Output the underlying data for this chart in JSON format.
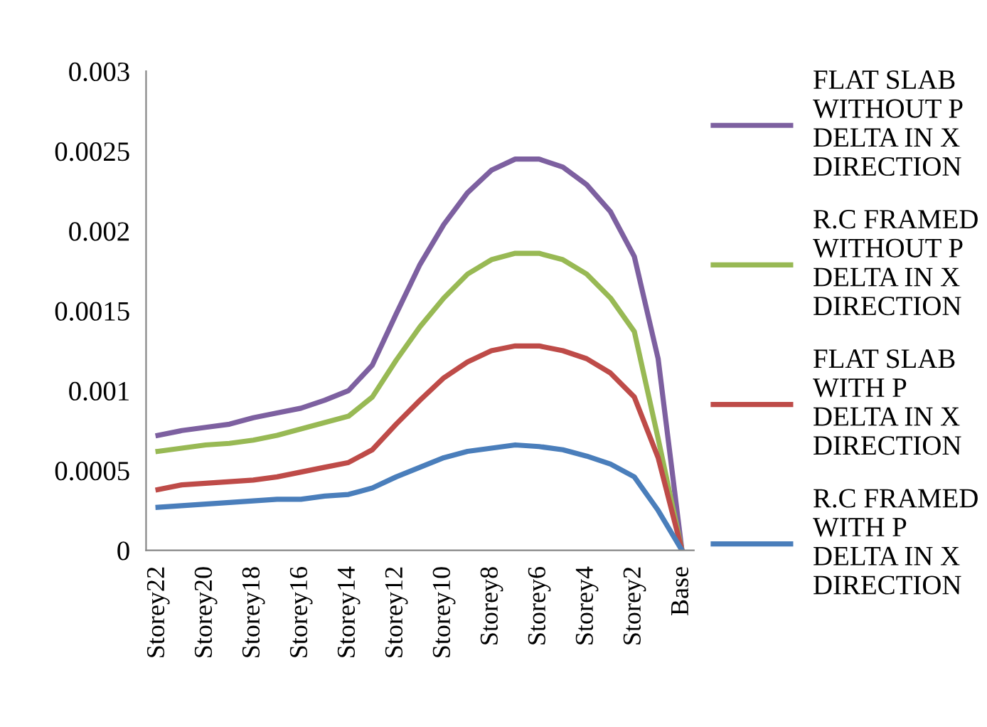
{
  "chart_data": {
    "type": "line",
    "categories": [
      "Storey22",
      null,
      "Storey20",
      null,
      "Storey18",
      null,
      "Storey16",
      null,
      "Storey14",
      null,
      "Storey12",
      null,
      "Storey10",
      null,
      "Storey8",
      null,
      "Storey6",
      null,
      "Storey4",
      null,
      "Storey2",
      null,
      "Base"
    ],
    "series": [
      {
        "name": "FLAT SLAB WITHOUT P DELTA IN X DIRECTION",
        "color": "#7d60a0",
        "values": [
          0.00072,
          0.00075,
          0.00077,
          0.00079,
          0.00083,
          0.00086,
          0.00089,
          0.00094,
          0.001,
          0.00116,
          0.00148,
          0.00179,
          0.00204,
          0.00224,
          0.00238,
          0.00245,
          0.00245,
          0.0024,
          0.00229,
          0.00212,
          0.00184,
          0.0012,
          0
        ]
      },
      {
        "name": "R.C FRAMED WITHOUT P DELTA IN X DIRECTION",
        "color": "#98b954",
        "values": [
          0.00062,
          0.00064,
          0.00066,
          0.00067,
          0.00069,
          0.00072,
          0.00076,
          0.0008,
          0.00084,
          0.00096,
          0.00119,
          0.0014,
          0.00158,
          0.00173,
          0.00182,
          0.00186,
          0.00186,
          0.00182,
          0.00173,
          0.00158,
          0.00137,
          0.0007,
          0
        ]
      },
      {
        "name": "FLAT SLAB WITH P DELTA IN X DIRECTION",
        "color": "#be4b48",
        "values": [
          0.00038,
          0.00041,
          0.00042,
          0.00043,
          0.00044,
          0.00046,
          0.00049,
          0.00052,
          0.00055,
          0.00063,
          0.00079,
          0.00094,
          0.00108,
          0.00118,
          0.00125,
          0.00128,
          0.00128,
          0.00125,
          0.0012,
          0.00111,
          0.00096,
          0.00058,
          0
        ]
      },
      {
        "name": "R.C FRAMED WITH P DELTA IN X DIRECTION",
        "color": "#4a7ebb",
        "values": [
          0.00027,
          0.00028,
          0.00029,
          0.0003,
          0.00031,
          0.00032,
          0.00032,
          0.00034,
          0.00035,
          0.00039,
          0.00046,
          0.00052,
          0.00058,
          0.00062,
          0.00064,
          0.00066,
          0.00065,
          0.00063,
          0.00059,
          0.00054,
          0.00046,
          0.00025,
          0
        ]
      }
    ],
    "ylim": [
      0,
      0.003
    ],
    "yticks": [
      0,
      0.0005,
      0.001,
      0.0015,
      0.002,
      0.0025,
      0.003
    ],
    "grid": false,
    "legend": "right",
    "marker": "none",
    "line_style": "solid"
  }
}
